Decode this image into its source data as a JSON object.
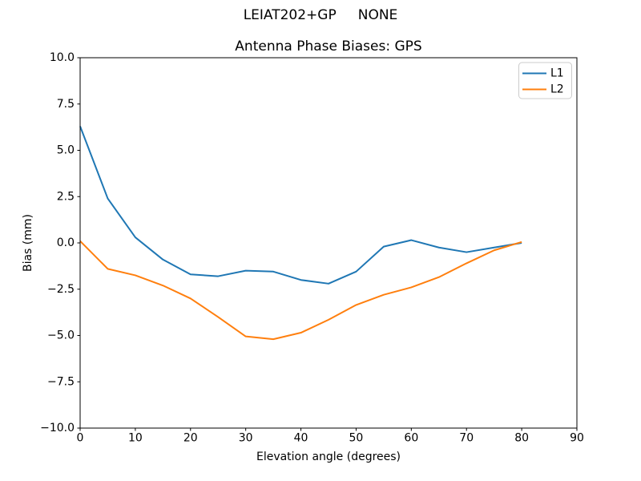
{
  "chart_data": {
    "type": "line",
    "suptitle": "LEIAT202+GP     NONE",
    "title": "Antenna Phase Biases: GPS",
    "xlabel": "Elevation angle (degrees)",
    "ylabel": "Bias (mm)",
    "xlim": [
      0,
      90
    ],
    "ylim": [
      -10,
      10
    ],
    "xticks": [
      0,
      10,
      20,
      30,
      40,
      50,
      60,
      70,
      80,
      90
    ],
    "yticks": [
      -10.0,
      -7.5,
      -5.0,
      -2.5,
      0.0,
      2.5,
      5.0,
      7.5,
      10.0
    ],
    "grid": false,
    "legend_position": "upper right",
    "colors": {
      "L1": "#1f77b4",
      "L2": "#ff7f0e",
      "axis": "#000000",
      "legend_border": "#cccccc"
    },
    "x": [
      0,
      5,
      10,
      15,
      20,
      25,
      30,
      35,
      40,
      45,
      50,
      55,
      60,
      65,
      70,
      75,
      80
    ],
    "series": [
      {
        "name": "L1",
        "color": "#1f77b4",
        "values": [
          6.3,
          2.4,
          0.3,
          -0.9,
          -1.7,
          -1.8,
          -1.5,
          -1.55,
          -2.0,
          -2.2,
          -1.55,
          -0.2,
          0.15,
          -0.25,
          -0.5,
          -0.25,
          0.0
        ]
      },
      {
        "name": "L2",
        "color": "#ff7f0e",
        "values": [
          0.1,
          -1.4,
          -1.75,
          -2.3,
          -3.0,
          -4.0,
          -5.05,
          -5.2,
          -4.85,
          -4.15,
          -3.35,
          -2.8,
          -2.4,
          -1.85,
          -1.1,
          -0.4,
          0.05
        ]
      }
    ]
  }
}
